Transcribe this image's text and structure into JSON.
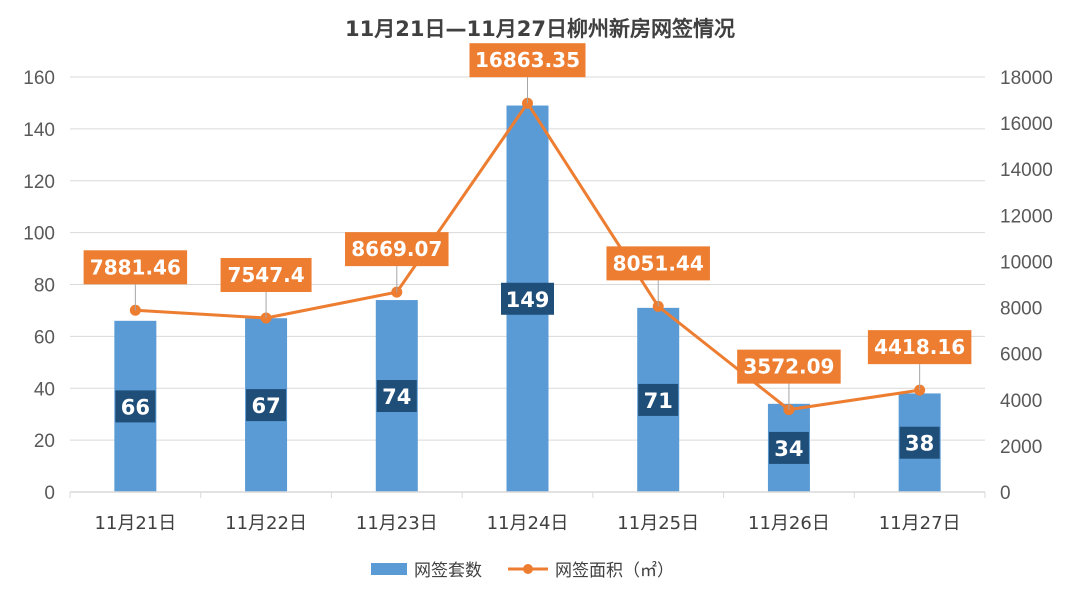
{
  "chart_data": {
    "type": "bar",
    "title": "11月21日—11月27日柳州新房网签情况",
    "categories": [
      "11月21日",
      "11月22日",
      "11月23日",
      "11月24日",
      "11月25日",
      "11月26日",
      "11月27日"
    ],
    "series": [
      {
        "name": "网签套数",
        "type": "bar",
        "axis": "left",
        "values": [
          66,
          67,
          74,
          149,
          71,
          34,
          38
        ],
        "labels": [
          "66",
          "67",
          "74",
          "149",
          "71",
          "34",
          "38"
        ]
      },
      {
        "name": "网签面积（㎡）",
        "type": "line",
        "axis": "right",
        "values": [
          7881.46,
          7547.4,
          8669.07,
          16863.35,
          8051.44,
          3572.09,
          4418.16
        ],
        "labels": [
          "7881.46",
          "7547.4",
          "8669.07",
          "16863.35",
          "8051.44",
          "3572.09",
          "4418.16"
        ]
      }
    ],
    "y_left": {
      "min": 0,
      "max": 160,
      "ticks": [
        "0",
        "20",
        "40",
        "60",
        "80",
        "100",
        "120",
        "140",
        "160"
      ]
    },
    "y_right": {
      "min": 0,
      "max": 18000,
      "ticks": [
        "0",
        "2000",
        "4000",
        "6000",
        "8000",
        "10000",
        "12000",
        "14000",
        "16000",
        "18000"
      ]
    },
    "grid": true,
    "legend_position": "bottom",
    "colors": {
      "bar": "#5B9BD5",
      "bar_label_bg": "#1F4E79",
      "line": "#ED7D31",
      "grid": "#D9D9D9",
      "axis_text": "#595959"
    }
  }
}
